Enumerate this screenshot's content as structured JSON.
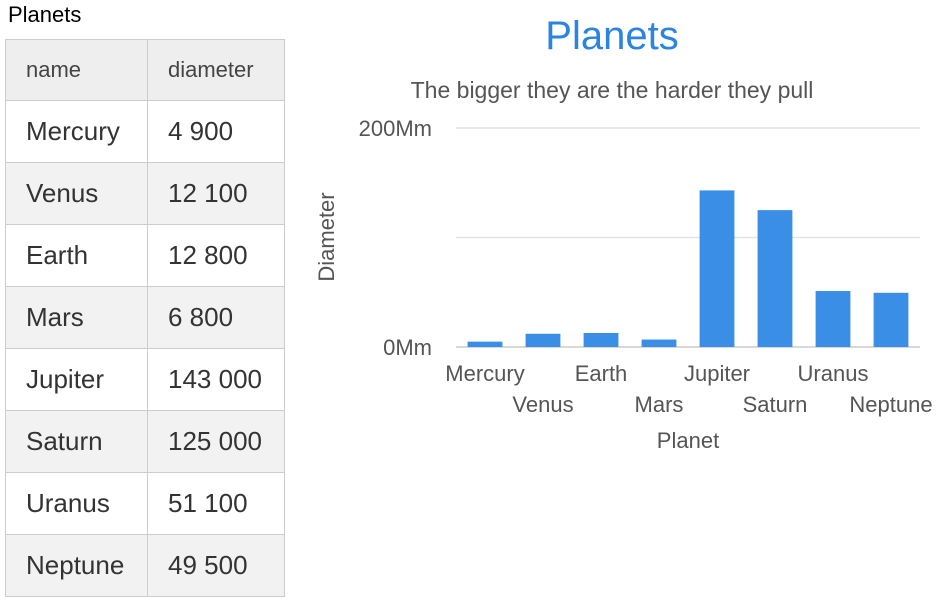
{
  "table": {
    "caption": "Planets",
    "headers": [
      "name",
      "diameter"
    ],
    "rows": [
      {
        "name": "Mercury",
        "diameter": "4 900"
      },
      {
        "name": "Venus",
        "diameter": "12 100"
      },
      {
        "name": "Earth",
        "diameter": "12 800"
      },
      {
        "name": "Mars",
        "diameter": "6 800"
      },
      {
        "name": "Jupiter",
        "diameter": "143 000"
      },
      {
        "name": "Saturn",
        "diameter": "125 000"
      },
      {
        "name": "Uranus",
        "diameter": "51 100"
      },
      {
        "name": "Neptune",
        "diameter": "49 500"
      }
    ]
  },
  "chart_data": {
    "type": "bar",
    "title": "Planets",
    "subtitle": "The bigger they are the harder they pull",
    "xlabel": "Planet",
    "ylabel": "Diameter",
    "categories": [
      "Mercury",
      "Venus",
      "Earth",
      "Mars",
      "Jupiter",
      "Saturn",
      "Uranus",
      "Neptune"
    ],
    "values": [
      4900,
      12100,
      12800,
      6800,
      143000,
      125000,
      51100,
      49500
    ],
    "ylim": [
      0,
      200000
    ],
    "yticks": [
      {
        "value": 0,
        "label": "0Mm"
      },
      {
        "value": 200000,
        "label": "200Mm"
      }
    ],
    "grid": true,
    "bar_color": "#3a8ee6"
  }
}
